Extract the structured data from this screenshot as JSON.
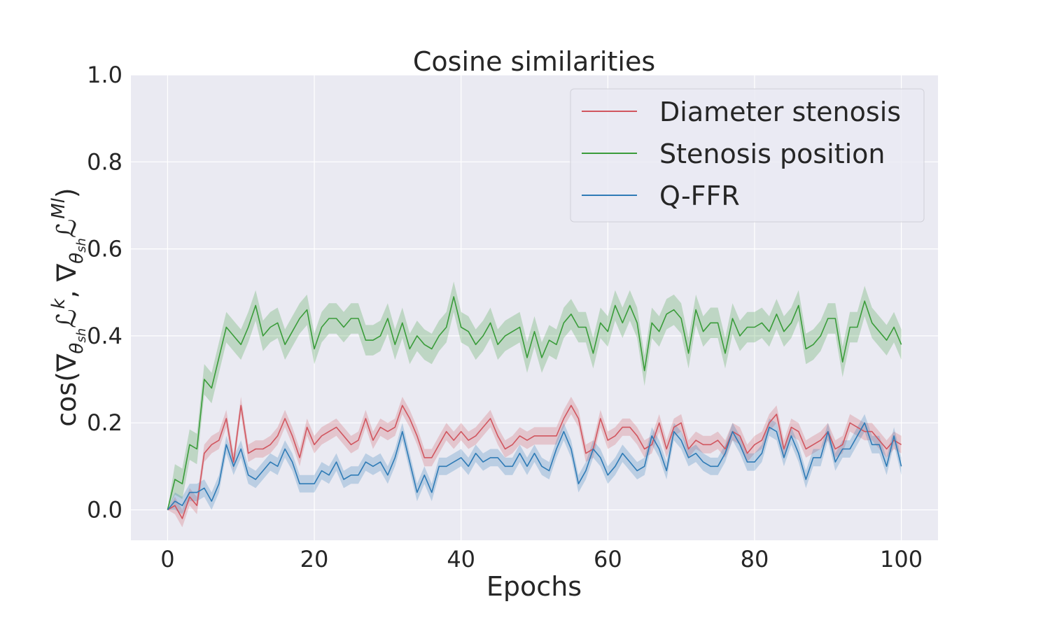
{
  "chart_data": {
    "type": "line",
    "title": "Cosine similarities",
    "xlabel": "Epochs",
    "ylabel": "cos(∇θshℒk, ∇θshℒMl)",
    "ylabel_parts": {
      "prefix": "cos(",
      "nabla": "∇",
      "theta": "θ",
      "sh": "sh",
      "L": "ℒ",
      "k": "k",
      "comma": ", ",
      "Ml": "Ml",
      "suffix": ")"
    },
    "xlim": [
      -5,
      105
    ],
    "ylim": [
      -0.07,
      1.0
    ],
    "xticks": [
      0,
      20,
      40,
      60,
      80,
      100
    ],
    "xtick_labels": [
      "0",
      "20",
      "40",
      "60",
      "80",
      "100"
    ],
    "yticks": [
      0.0,
      0.2,
      0.4,
      0.6,
      0.8,
      1.0
    ],
    "ytick_labels": [
      "0.0",
      "0.2",
      "0.4",
      "0.6",
      "0.8",
      "1.0"
    ],
    "grid": true,
    "legend_position": "top-right",
    "x": [
      0,
      1,
      2,
      3,
      4,
      5,
      6,
      7,
      8,
      9,
      10,
      11,
      12,
      13,
      14,
      15,
      16,
      17,
      18,
      19,
      20,
      21,
      22,
      23,
      24,
      25,
      26,
      27,
      28,
      29,
      30,
      31,
      32,
      33,
      34,
      35,
      36,
      37,
      38,
      39,
      40,
      41,
      42,
      43,
      44,
      45,
      46,
      47,
      48,
      49,
      50,
      51,
      52,
      53,
      54,
      55,
      56,
      57,
      58,
      59,
      60,
      61,
      62,
      63,
      64,
      65,
      66,
      67,
      68,
      69,
      70,
      71,
      72,
      73,
      74,
      75,
      76,
      77,
      78,
      79,
      80,
      81,
      82,
      83,
      84,
      85,
      86,
      87,
      88,
      89,
      90,
      91,
      92,
      93,
      94,
      95,
      96,
      97,
      98,
      99,
      100
    ],
    "series": [
      {
        "name": "Diameter stenosis",
        "color": "#d1565f",
        "band": 0.02,
        "values": [
          0.0,
          0.01,
          -0.02,
          0.03,
          0.01,
          0.13,
          0.15,
          0.16,
          0.21,
          0.11,
          0.24,
          0.13,
          0.14,
          0.14,
          0.15,
          0.17,
          0.21,
          0.17,
          0.12,
          0.19,
          0.15,
          0.17,
          0.18,
          0.19,
          0.17,
          0.15,
          0.16,
          0.21,
          0.16,
          0.19,
          0.18,
          0.19,
          0.24,
          0.21,
          0.17,
          0.12,
          0.12,
          0.15,
          0.18,
          0.16,
          0.18,
          0.16,
          0.17,
          0.19,
          0.21,
          0.17,
          0.14,
          0.15,
          0.17,
          0.16,
          0.17,
          0.17,
          0.17,
          0.17,
          0.21,
          0.24,
          0.21,
          0.13,
          0.14,
          0.21,
          0.16,
          0.17,
          0.19,
          0.19,
          0.17,
          0.14,
          0.15,
          0.2,
          0.14,
          0.19,
          0.2,
          0.14,
          0.16,
          0.15,
          0.15,
          0.16,
          0.14,
          0.18,
          0.17,
          0.13,
          0.15,
          0.16,
          0.2,
          0.22,
          0.14,
          0.19,
          0.18,
          0.14,
          0.15,
          0.16,
          0.18,
          0.14,
          0.15,
          0.2,
          0.19,
          0.18,
          0.18,
          0.16,
          0.14,
          0.16,
          0.15
        ]
      },
      {
        "name": "Stenosis position",
        "color": "#3a9c3a",
        "band": 0.035,
        "values": [
          0.0,
          0.07,
          0.06,
          0.15,
          0.14,
          0.3,
          0.28,
          0.35,
          0.42,
          0.4,
          0.38,
          0.42,
          0.47,
          0.4,
          0.42,
          0.43,
          0.38,
          0.41,
          0.44,
          0.46,
          0.37,
          0.42,
          0.44,
          0.44,
          0.42,
          0.44,
          0.44,
          0.39,
          0.39,
          0.4,
          0.44,
          0.38,
          0.43,
          0.37,
          0.4,
          0.38,
          0.37,
          0.4,
          0.42,
          0.49,
          0.42,
          0.41,
          0.38,
          0.4,
          0.43,
          0.38,
          0.4,
          0.41,
          0.42,
          0.35,
          0.41,
          0.35,
          0.39,
          0.38,
          0.43,
          0.45,
          0.42,
          0.42,
          0.36,
          0.43,
          0.41,
          0.47,
          0.43,
          0.47,
          0.43,
          0.32,
          0.43,
          0.41,
          0.45,
          0.46,
          0.44,
          0.36,
          0.46,
          0.41,
          0.43,
          0.43,
          0.36,
          0.44,
          0.4,
          0.42,
          0.42,
          0.43,
          0.41,
          0.45,
          0.41,
          0.43,
          0.47,
          0.37,
          0.38,
          0.4,
          0.44,
          0.44,
          0.34,
          0.42,
          0.42,
          0.48,
          0.43,
          0.41,
          0.39,
          0.42,
          0.38
        ]
      },
      {
        "name": "Q-FFR",
        "color": "#2f7bb6",
        "band": 0.02,
        "values": [
          0.0,
          0.02,
          0.01,
          0.04,
          0.04,
          0.05,
          0.02,
          0.06,
          0.15,
          0.1,
          0.14,
          0.08,
          0.07,
          0.09,
          0.11,
          0.1,
          0.14,
          0.11,
          0.06,
          0.06,
          0.06,
          0.09,
          0.08,
          0.11,
          0.07,
          0.08,
          0.08,
          0.11,
          0.1,
          0.11,
          0.08,
          0.12,
          0.18,
          0.11,
          0.04,
          0.08,
          0.04,
          0.1,
          0.1,
          0.11,
          0.12,
          0.1,
          0.13,
          0.11,
          0.12,
          0.12,
          0.1,
          0.1,
          0.13,
          0.1,
          0.13,
          0.1,
          0.09,
          0.14,
          0.18,
          0.14,
          0.06,
          0.09,
          0.14,
          0.12,
          0.08,
          0.1,
          0.13,
          0.11,
          0.09,
          0.1,
          0.17,
          0.14,
          0.09,
          0.18,
          0.16,
          0.12,
          0.13,
          0.11,
          0.1,
          0.1,
          0.13,
          0.18,
          0.15,
          0.11,
          0.11,
          0.13,
          0.19,
          0.18,
          0.12,
          0.17,
          0.13,
          0.07,
          0.12,
          0.12,
          0.18,
          0.11,
          0.14,
          0.14,
          0.17,
          0.2,
          0.15,
          0.15,
          0.1,
          0.17,
          0.1
        ]
      }
    ]
  }
}
